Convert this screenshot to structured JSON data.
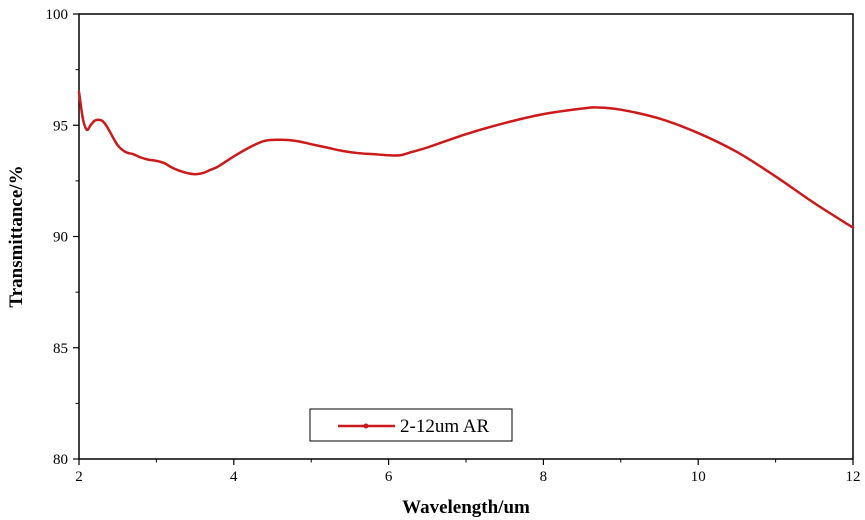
{
  "chart_data": {
    "type": "line",
    "xlabel": "Wavelength/um",
    "ylabel": "Transmittance/%",
    "xlim": [
      2,
      12
    ],
    "ylim": [
      80,
      100
    ],
    "xticks": [
      "2",
      "4",
      "6",
      "8",
      "10",
      "12"
    ],
    "yticks": [
      "80",
      "85",
      "90",
      "95",
      "100"
    ],
    "grid": false,
    "legend_position": "bottom-center",
    "series": [
      {
        "name": "2-12um AR",
        "color": "#cc1a1a",
        "x": [
          2.0,
          2.05,
          2.1,
          2.15,
          2.2,
          2.25,
          2.3,
          2.35,
          2.4,
          2.5,
          2.6,
          2.7,
          2.8,
          2.9,
          3.0,
          3.1,
          3.2,
          3.3,
          3.4,
          3.5,
          3.6,
          3.7,
          3.8,
          4.0,
          4.2,
          4.4,
          4.6,
          4.8,
          5.0,
          5.2,
          5.4,
          5.6,
          5.8,
          6.0,
          6.15,
          6.3,
          6.5,
          7.0,
          7.5,
          8.0,
          8.5,
          8.7,
          9.0,
          9.5,
          10.0,
          10.5,
          11.0,
          11.5,
          12.0
        ],
        "y": [
          96.5,
          95.3,
          94.8,
          95.0,
          95.2,
          95.25,
          95.2,
          95.0,
          94.7,
          94.1,
          93.8,
          93.7,
          93.55,
          93.45,
          93.4,
          93.3,
          93.1,
          92.95,
          92.85,
          92.8,
          92.85,
          93.0,
          93.15,
          93.6,
          94.0,
          94.3,
          94.35,
          94.3,
          94.15,
          94.0,
          93.85,
          93.75,
          93.7,
          93.65,
          93.65,
          93.8,
          94.0,
          94.6,
          95.1,
          95.5,
          95.75,
          95.8,
          95.7,
          95.3,
          94.65,
          93.8,
          92.7,
          91.5,
          90.4
        ]
      }
    ]
  }
}
